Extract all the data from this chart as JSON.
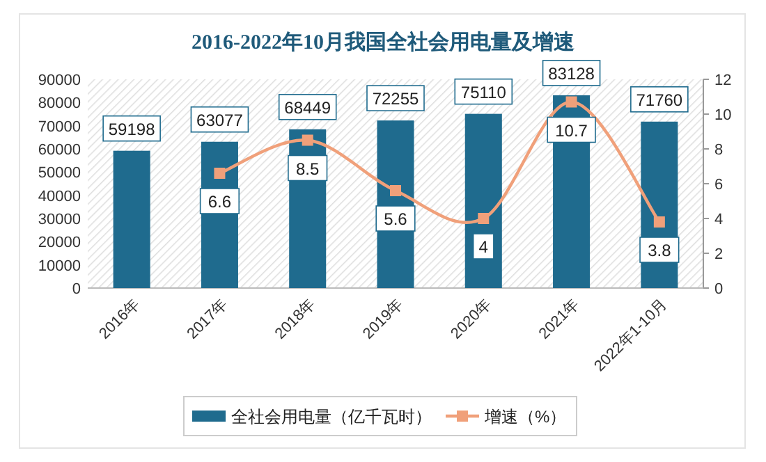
{
  "chart_data": {
    "type": "bar",
    "title": "2016-2022年10月我国全社会用电量及增速",
    "categories": [
      "2016年",
      "2017年",
      "2018年",
      "2019年",
      "2020年",
      "2021年",
      "2022年1-10月"
    ],
    "series": [
      {
        "name": "全社会用电量（亿千瓦时）",
        "color": "#1f6b8e",
        "values": [
          59198,
          63077,
          68449,
          72255,
          75110,
          83128,
          71760
        ]
      },
      {
        "name": "增速（%）",
        "type": "line",
        "axis": "y2",
        "marker": "square",
        "color": "#f0a07a",
        "values": [
          null,
          6.6,
          8.5,
          5.6,
          4,
          10.7,
          3.8
        ]
      }
    ],
    "ylim": [
      0,
      90000
    ],
    "yticks": [
      0,
      10000,
      20000,
      30000,
      40000,
      50000,
      60000,
      70000,
      80000,
      90000
    ],
    "y2lim": [
      0,
      12
    ],
    "y2ticks": [
      0,
      2,
      4,
      6,
      8,
      10,
      12
    ],
    "legend": "bottom",
    "data_labels": true
  }
}
